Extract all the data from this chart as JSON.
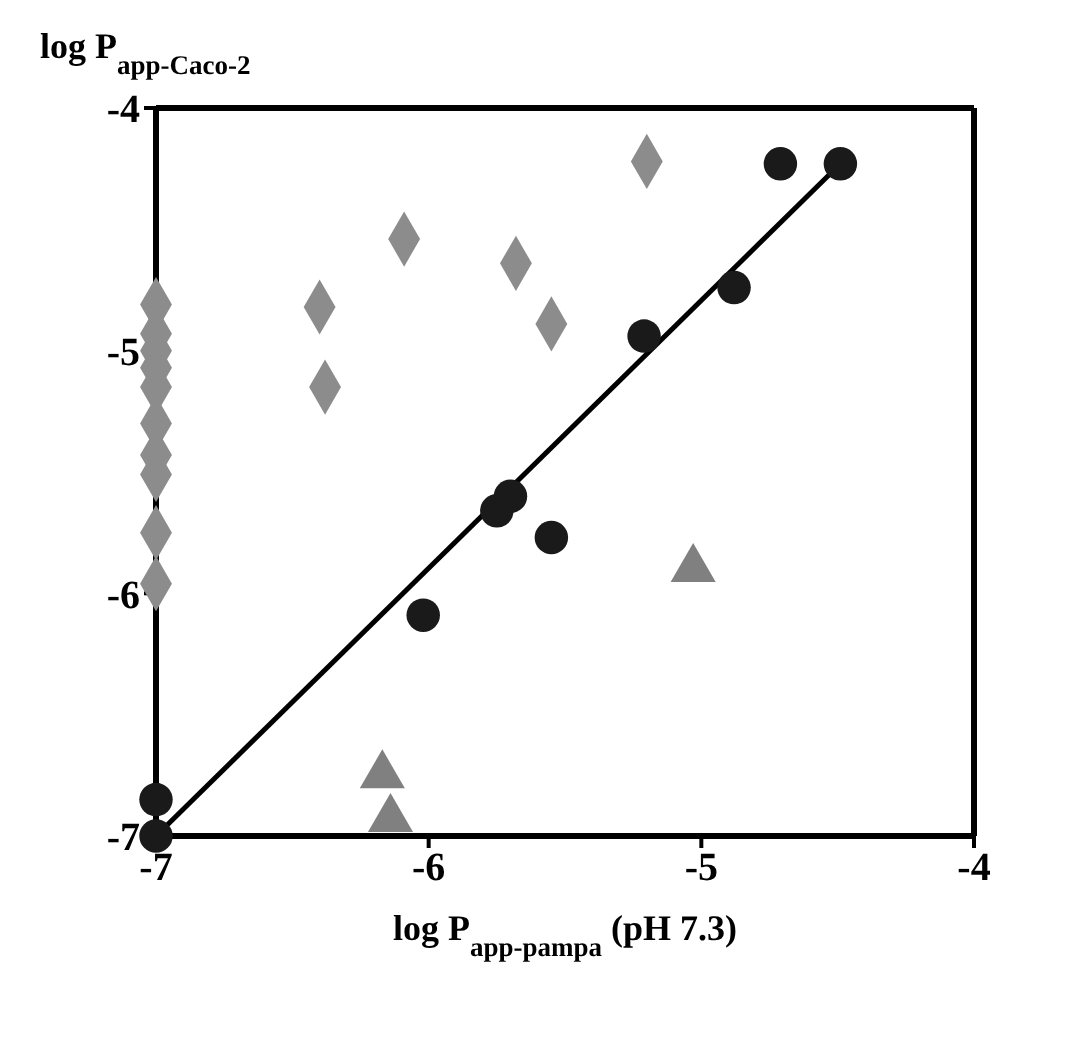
{
  "chart_data": {
    "type": "scatter",
    "xlabel": "log P$_{app-pampa}$   (pH 7.3)",
    "ylabel": "log P$_{app-Caco-2}$",
    "xlim": [
      -7,
      -4
    ],
    "xticks": [
      -7,
      -6,
      -5,
      -4
    ],
    "ylim": [
      -7,
      -4
    ],
    "yticks": [
      -7,
      -6,
      -5,
      -4
    ],
    "grid": false,
    "series": [
      {
        "marker": "diamond",
        "color": "#8c8c8c",
        "x": [
          -7,
          -7,
          -7,
          -7,
          -7,
          -7,
          -7,
          -7,
          -7,
          -7,
          -6.4,
          -6.09,
          -6.38,
          -5.68,
          -5.2,
          -5.55
        ],
        "values": [
          -4.81,
          -4.93,
          -5.0,
          -5.07,
          -5.15,
          -5.3,
          -5.43,
          -5.51,
          -5.75,
          -5.96,
          -4.82,
          -4.54,
          -5.15,
          -4.64,
          -4.22,
          -4.89
        ]
      },
      {
        "marker": "circle",
        "color": "#1a1a1a",
        "x": [
          -4.71,
          -4.49,
          -4.88,
          -5.21,
          -5.75,
          -5.7,
          -6.02,
          -5.55,
          -7,
          -7
        ],
        "values": [
          -4.23,
          -4.23,
          -4.74,
          -4.94,
          -5.66,
          -5.6,
          -6.09,
          -5.77,
          -6.85,
          -7.0
        ]
      },
      {
        "marker": "triangle",
        "color": "#808080",
        "x": [
          -5.03,
          -6.17,
          -6.14
        ],
        "values": [
          -5.9,
          -6.75,
          -6.93
        ]
      },
      {
        "type": "line",
        "marker": "none",
        "color": "#000000",
        "x": [
          -7,
          -4.49
        ],
        "values": [
          -7,
          -4.23
        ]
      }
    ]
  }
}
